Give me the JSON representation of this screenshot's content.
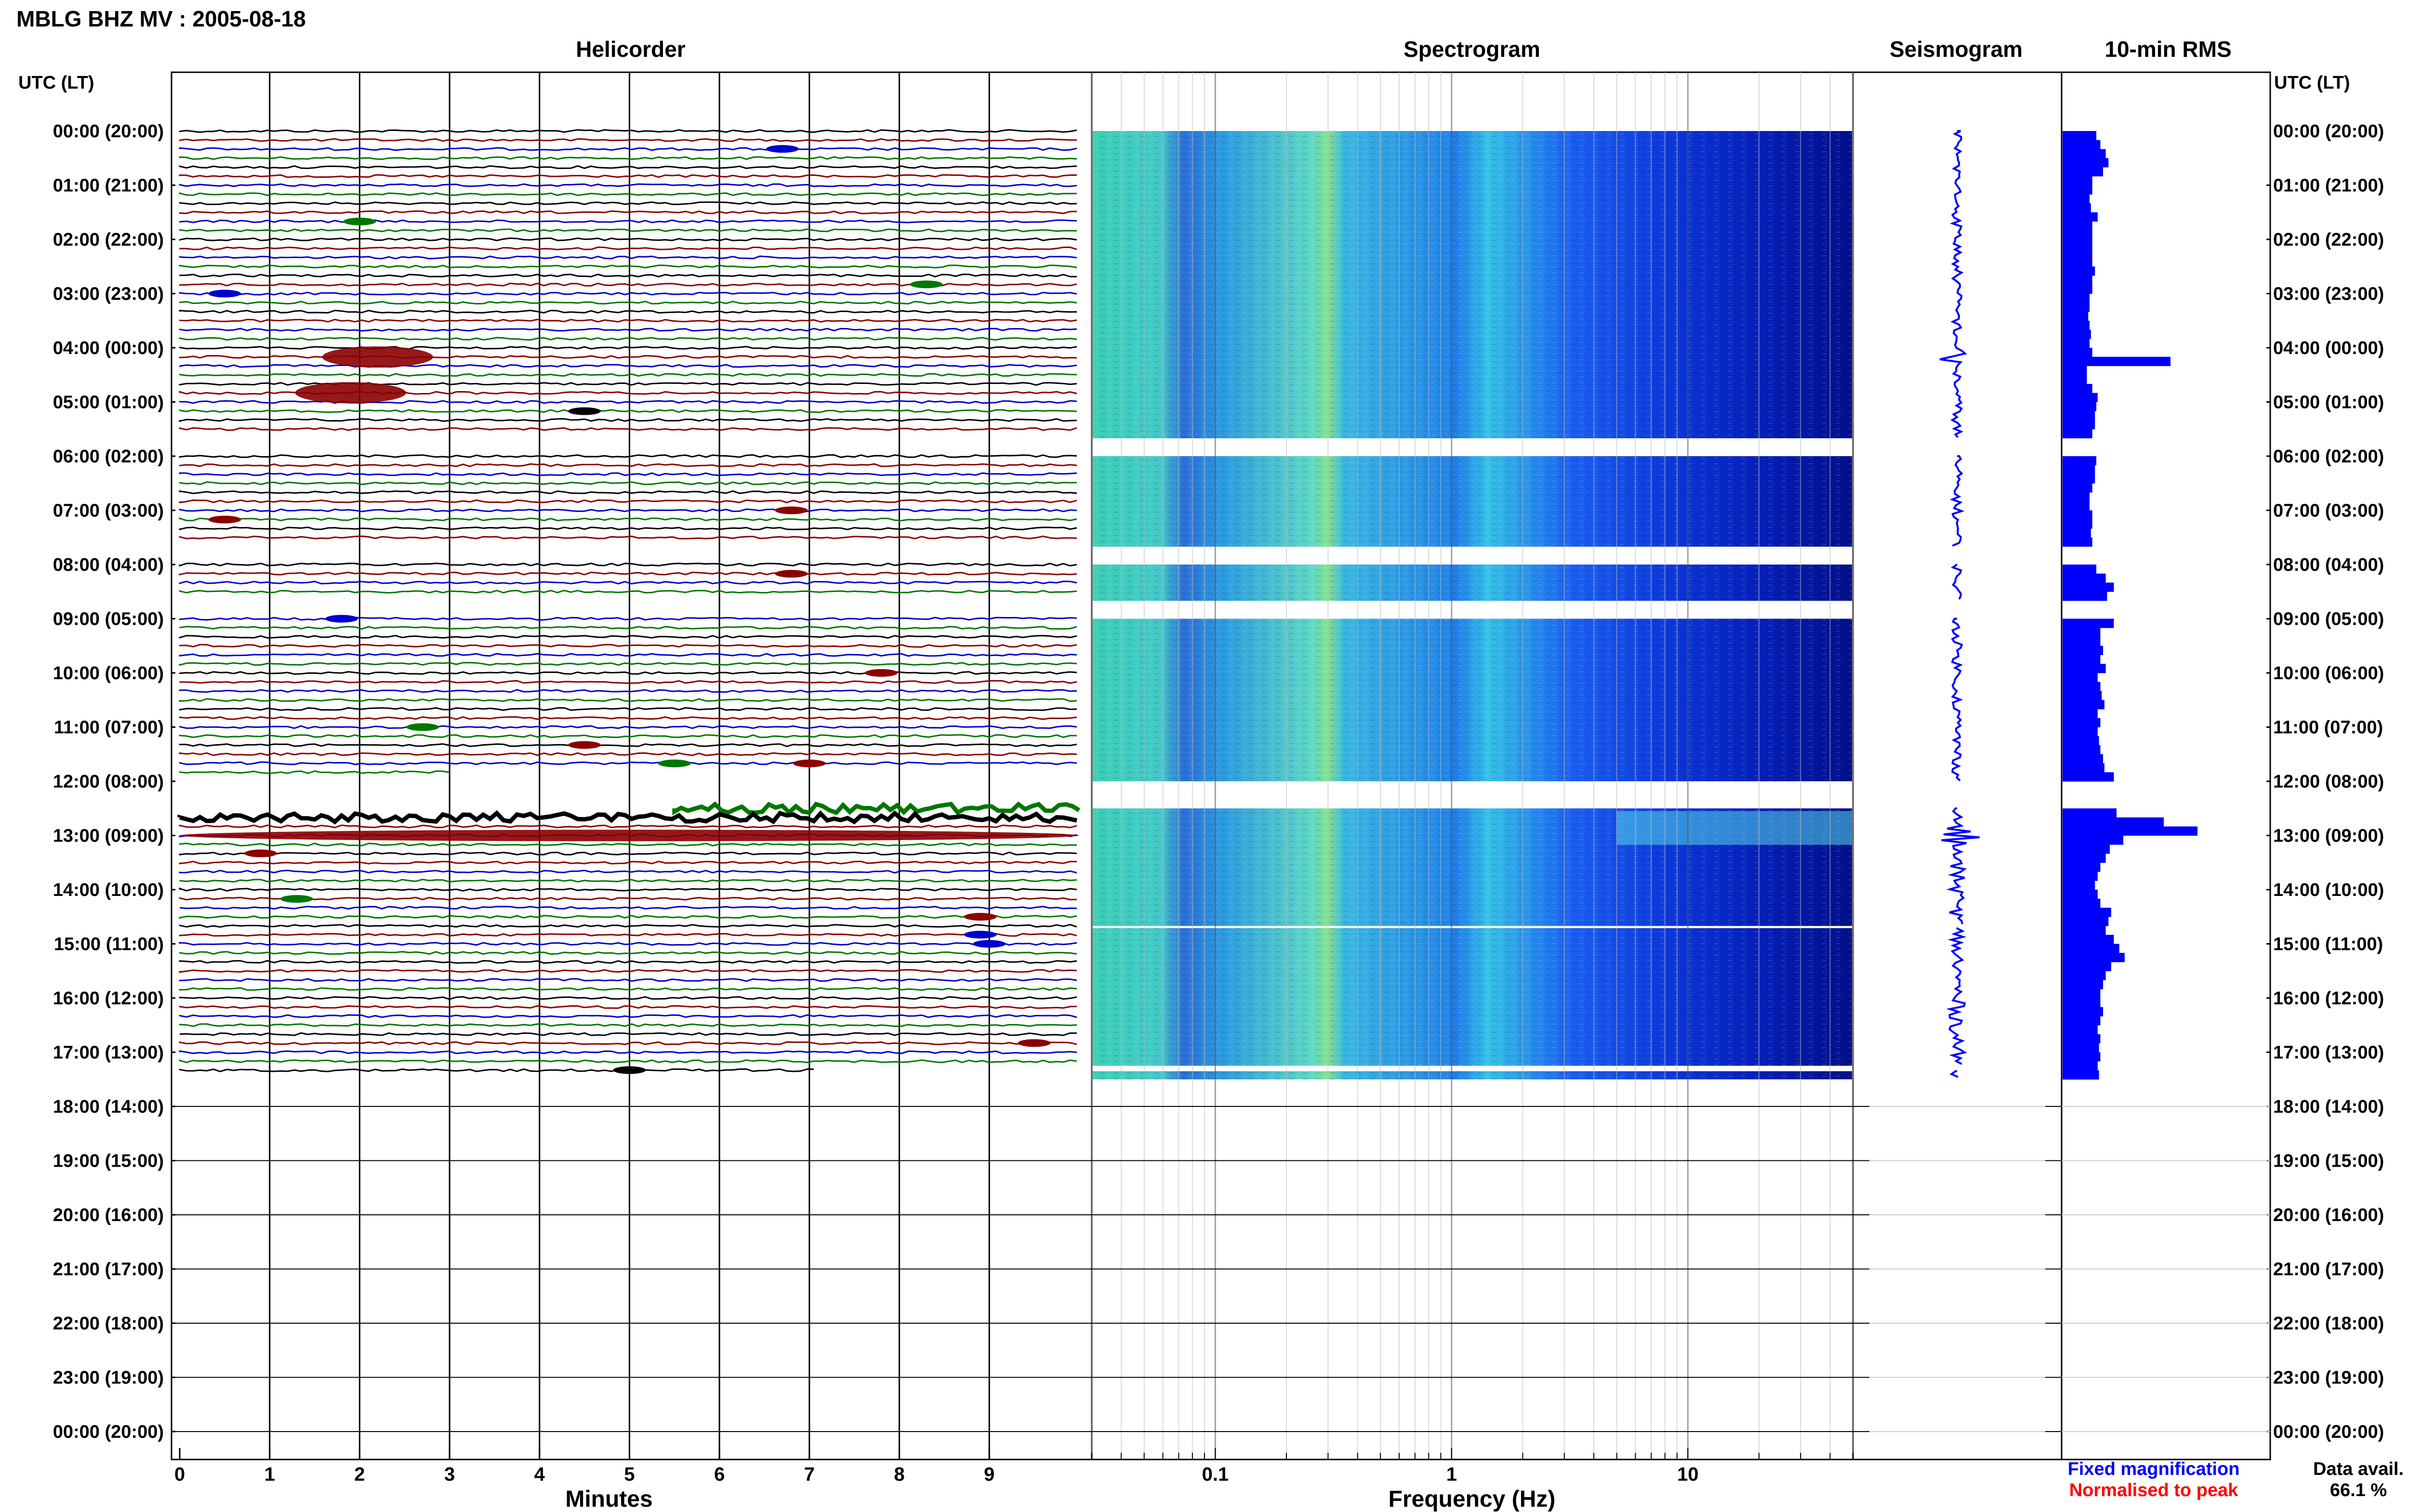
{
  "header": {
    "title": "MBLG BHZ MV : 2005-08-18",
    "utc_label_left": "UTC (LT)",
    "utc_label_right": "UTC (LT)"
  },
  "panels": {
    "helicorder": "Helicorder",
    "spectrogram": "Spectrogram",
    "seismogram": "Seismogram",
    "rms": "10-min RMS"
  },
  "time_labels": [
    "00:00 (20:00)",
    "01:00 (21:00)",
    "02:00 (22:00)",
    "03:00 (23:00)",
    "04:00 (00:00)",
    "05:00 (01:00)",
    "06:00 (02:00)",
    "07:00 (03:00)",
    "08:00 (04:00)",
    "09:00 (05:00)",
    "10:00 (06:00)",
    "11:00 (07:00)",
    "12:00 (08:00)",
    "13:00 (09:00)",
    "14:00 (10:00)",
    "15:00 (11:00)",
    "16:00 (12:00)",
    "17:00 (13:00)",
    "18:00 (14:00)",
    "19:00 (15:00)",
    "20:00 (16:00)",
    "21:00 (17:00)",
    "22:00 (18:00)",
    "23:00 (19:00)",
    "00:00 (20:00)"
  ],
  "x_axes": {
    "minutes_label": "Minutes",
    "minutes_ticks": [
      "0",
      "1",
      "2",
      "3",
      "4",
      "5",
      "6",
      "7",
      "8",
      "9"
    ],
    "frequency_label": "Frequency (Hz)",
    "frequency_ticks": [
      "0.1",
      "1",
      "10"
    ]
  },
  "legend": {
    "fixed": "Fixed magnification",
    "normalised": "Normalised to peak",
    "fixed_color": "#0000ff",
    "normalised_color": "#ff0000"
  },
  "availability": {
    "label": "Data avail.",
    "value": "66.1 %"
  },
  "colors": {
    "trace_cycle": [
      "#000000",
      "#8b0000",
      "#0000cc",
      "#007700"
    ],
    "rms_bar": "#0000ff",
    "grid": "#000000"
  },
  "chart_data": {
    "type": "heatmap",
    "subplots": [
      "Helicorder",
      "Spectrogram",
      "Seismogram",
      "10-min RMS"
    ],
    "helicorder": {
      "x_label": "Minutes",
      "x_range": [
        0,
        10
      ],
      "row_length_minutes": 10,
      "rows_per_hour": 6,
      "y_range_hours_utc": [
        0,
        24
      ],
      "data_end_utc_hour": 17.5,
      "data_gaps_utc_hours": [
        [
          5.67,
          6.0
        ],
        [
          7.67,
          8.0
        ],
        [
          8.67,
          9.0
        ],
        [
          12.0,
          12.5
        ]
      ],
      "notable_events_utc": [
        {
          "time_hours": 4.17,
          "minute": 2.2
        },
        {
          "time_hours": 4.83,
          "minute": 1.9
        },
        {
          "time_hours": 13.0,
          "minute": 5.0
        }
      ]
    },
    "spectrogram": {
      "x_label": "Frequency (Hz)",
      "x_scale": "log",
      "x_range": [
        0.03,
        50
      ],
      "peak_band_hz": 0.25,
      "gaps_utc_hours": [
        [
          5.67,
          6.0
        ],
        [
          7.67,
          8.0
        ],
        [
          8.67,
          9.0
        ],
        [
          12.0,
          12.5
        ],
        [
          14.67,
          14.71
        ],
        [
          17.25,
          17.35
        ]
      ]
    },
    "seismogram": {
      "max_amplitude_utc_hour": 13.0
    },
    "rms_10min": {
      "start_utc_hour": 0,
      "bin_minutes": 10,
      "values_relative": [
        0.25,
        0.28,
        0.32,
        0.34,
        0.3,
        0.22,
        0.22,
        0.2,
        0.21,
        0.26,
        0.22,
        0.22,
        0.22,
        0.22,
        0.22,
        0.24,
        0.22,
        0.22,
        0.2,
        0.2,
        0.19,
        0.2,
        0.21,
        0.2,
        0.22,
        0.8,
        0.18,
        0.18,
        0.22,
        0.26,
        0.25,
        0.24,
        0.24,
        0.22,
        null,
        null,
        0.25,
        0.24,
        0.24,
        0.22,
        0.2,
        0.2,
        0.22,
        0.22,
        0.21,
        0.22,
        null,
        null,
        0.25,
        0.32,
        0.38,
        0.33,
        null,
        null,
        0.38,
        0.28,
        0.28,
        0.3,
        0.28,
        0.32,
        0.26,
        0.28,
        0.29,
        0.31,
        0.26,
        0.28,
        0.26,
        0.27,
        0.28,
        0.3,
        0.31,
        0.38,
        null,
        null,
        null,
        0.4,
        0.75,
        1.0,
        0.45,
        0.35,
        0.32,
        0.28,
        0.26,
        0.24,
        0.26,
        0.28,
        0.36,
        0.34,
        0.32,
        0.38,
        0.42,
        0.46,
        0.36,
        0.32,
        0.3,
        0.28,
        0.28,
        0.3,
        0.28,
        0.26,
        0.28,
        0.27,
        0.28,
        0.26,
        0.27
      ]
    },
    "data_availability_percent": 66.1
  }
}
